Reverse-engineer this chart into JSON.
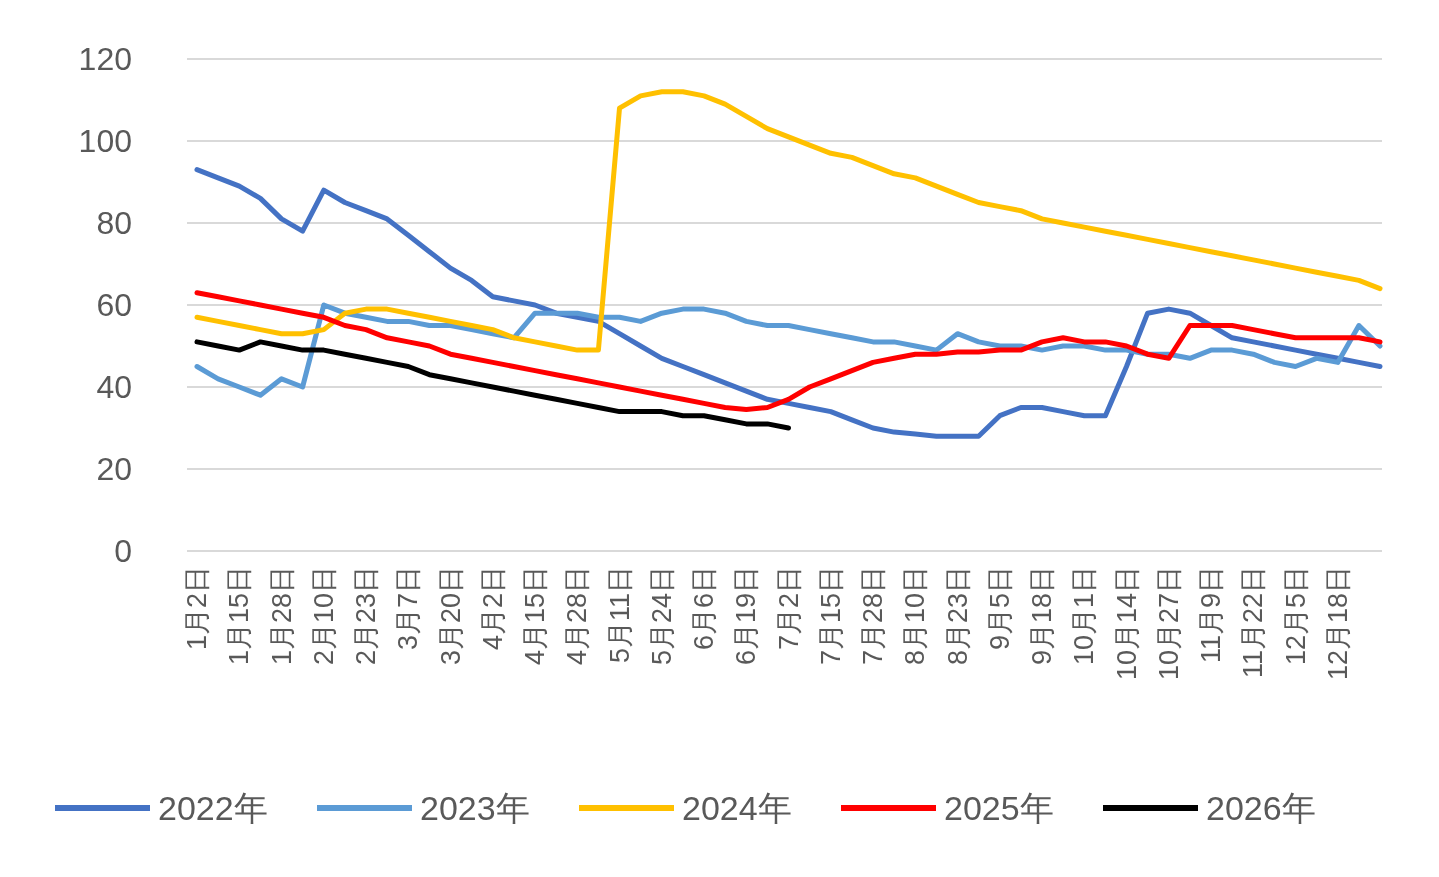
{
  "chart_data": {
    "type": "line",
    "categories": [
      "1月2日",
      null,
      "1月15日",
      null,
      "1月28日",
      null,
      "2月10日",
      null,
      "2月23日",
      null,
      "3月7日",
      null,
      "3月20日",
      null,
      "4月2日",
      null,
      "4月15日",
      null,
      "4月28日",
      null,
      "5月11日",
      null,
      "5月24日",
      null,
      "6月6日",
      null,
      "6月19日",
      null,
      "7月2日",
      null,
      "7月15日",
      null,
      "7月28日",
      null,
      "8月10日",
      null,
      "8月23日",
      null,
      "9月5日",
      null,
      "9月18日",
      null,
      "10月1日",
      null,
      "10月14日",
      null,
      "10月27日",
      null,
      "11月9日",
      null,
      "11月22日",
      null,
      "12月5日",
      null,
      "12月18日",
      null,
      null
    ],
    "series": [
      {
        "name": "2022年",
        "color": "#4472c4",
        "values": [
          93,
          91,
          89,
          86,
          81,
          78,
          88,
          85,
          83,
          81,
          77,
          73,
          69,
          66,
          62,
          61,
          60,
          58,
          57,
          56,
          53,
          50,
          47,
          45,
          43,
          41,
          39,
          37,
          36,
          35,
          34,
          32,
          30,
          29,
          28.5,
          28,
          28,
          28,
          33,
          35,
          35,
          34,
          33,
          33,
          45,
          58,
          59,
          58,
          55,
          52,
          51,
          50,
          49,
          48,
          47,
          46,
          45
        ]
      },
      {
        "name": "2023年",
        "color": "#5b9bd5",
        "values": [
          45,
          42,
          40,
          38,
          42,
          40,
          60,
          58,
          57,
          56,
          56,
          55,
          55,
          54,
          53,
          52,
          58,
          58,
          58,
          57,
          57,
          56,
          58,
          59,
          59,
          58,
          56,
          55,
          55,
          54,
          53,
          52,
          51,
          51,
          50,
          49,
          53,
          51,
          50,
          50,
          49,
          50,
          50,
          49,
          49,
          48,
          48,
          47,
          49,
          49,
          48,
          46,
          45,
          47,
          46,
          55,
          50
        ]
      },
      {
        "name": "2024年",
        "color": "#ffc000",
        "values": [
          57,
          56,
          55,
          54,
          53,
          53,
          54,
          58,
          59,
          59,
          58,
          57,
          56,
          55,
          54,
          52,
          51,
          50,
          49,
          49,
          108,
          111,
          112,
          112,
          111,
          109,
          106,
          103,
          101,
          99,
          97,
          96,
          94,
          92,
          91,
          89,
          87,
          85,
          84,
          83,
          81,
          80,
          79,
          78,
          77,
          76,
          75,
          74,
          73,
          72,
          71,
          70,
          69,
          68,
          67,
          66,
          64
        ]
      },
      {
        "name": "2025年",
        "color": "#ff0000",
        "values": [
          63,
          62,
          61,
          60,
          59,
          58,
          57,
          55,
          54,
          52,
          51,
          50,
          48,
          47,
          46,
          45,
          44,
          43,
          42,
          41,
          40,
          39,
          38,
          37,
          36,
          35,
          34.5,
          35,
          37,
          40,
          42,
          44,
          46,
          47,
          48,
          48,
          48.5,
          48.5,
          49,
          49,
          51,
          52,
          51,
          51,
          50,
          48,
          47,
          55,
          55,
          55,
          54,
          53,
          52,
          52,
          52,
          52,
          51
        ]
      },
      {
        "name": "2026年",
        "color": "#000000",
        "values": [
          51,
          50,
          49,
          51,
          50,
          49,
          49,
          48,
          47,
          46,
          45,
          43,
          42,
          41,
          40,
          39,
          38,
          37,
          36,
          35,
          34,
          34,
          34,
          33,
          33,
          32,
          31,
          31,
          30,
          null,
          null,
          null,
          null,
          null,
          null,
          null,
          null,
          null,
          null,
          null,
          null,
          null,
          null,
          null,
          null,
          null,
          null,
          null,
          null,
          null,
          null,
          null,
          null,
          null,
          null,
          null,
          null
        ]
      }
    ],
    "ylim": [
      0,
      120
    ],
    "yticks": [
      0,
      20,
      40,
      60,
      80,
      100,
      120
    ],
    "grid": "y",
    "legend": "bottom"
  }
}
